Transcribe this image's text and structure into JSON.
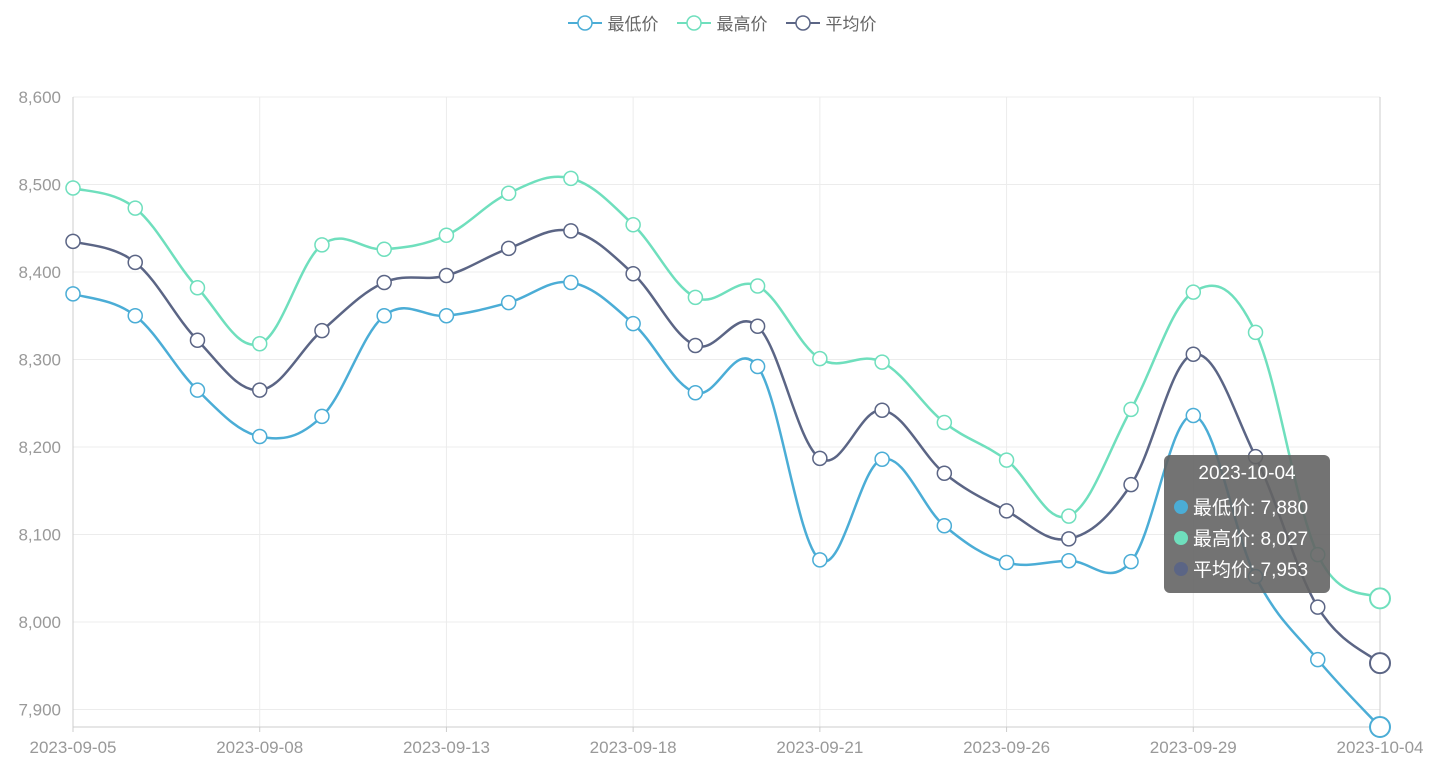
{
  "chart_data": {
    "type": "line",
    "smooth": true,
    "x": [
      "2023-09-05",
      "2023-09-06",
      "2023-09-07",
      "2023-09-08",
      "2023-09-11",
      "2023-09-12",
      "2023-09-13",
      "2023-09-14",
      "2023-09-15",
      "2023-09-18",
      "2023-09-19",
      "2023-09-20",
      "2023-09-21",
      "2023-09-22",
      "2023-09-25",
      "2023-09-26",
      "2023-09-27",
      "2023-09-28",
      "2023-09-29",
      "2023-10-02",
      "2023-10-03",
      "2023-10-04"
    ],
    "x_tick_labels": [
      "2023-09-05",
      "2023-09-08",
      "2023-09-13",
      "2023-09-18",
      "2023-09-21",
      "2023-09-26",
      "2023-09-29",
      "2023-10-04"
    ],
    "series": [
      {
        "name": "最低价",
        "color": "#4badd6",
        "values": [
          8375,
          8350,
          8265,
          8212,
          8235,
          8350,
          8350,
          8365,
          8388,
          8341,
          8262,
          8292,
          8071,
          8186,
          8110,
          8068,
          8070,
          8069,
          8236,
          8052,
          7957,
          7880
        ]
      },
      {
        "name": "最高价",
        "color": "#6fdfbd",
        "values": [
          8496,
          8473,
          8382,
          8318,
          8431,
          8426,
          8442,
          8490,
          8507,
          8454,
          8371,
          8384,
          8301,
          8297,
          8228,
          8185,
          8121,
          8243,
          8377,
          8331,
          8077,
          8027
        ]
      },
      {
        "name": "平均价",
        "color": "#5b6585",
        "values": [
          8435,
          8411,
          8322,
          8265,
          8333,
          8388,
          8396,
          8427,
          8447,
          8398,
          8316,
          8338,
          8187,
          8242,
          8170,
          8127,
          8095,
          8157,
          8306,
          8189,
          8017,
          7953
        ]
      }
    ],
    "yticks": [
      7900,
      8000,
      8100,
      8200,
      8300,
      8400,
      8500,
      8600
    ],
    "ylim": [
      7880,
      8600
    ],
    "grid": true,
    "legend_position": "top-center"
  },
  "legend": [
    {
      "label": "最低价",
      "color": "#4badd6"
    },
    {
      "label": "最高价",
      "color": "#6fdfbd"
    },
    {
      "label": "平均价",
      "color": "#5b6585"
    }
  ],
  "tooltip": {
    "title": "2023-10-04",
    "rows": [
      {
        "text": "最低价: 7,880",
        "color": "#4badd6"
      },
      {
        "text": "最高价: 8,027",
        "color": "#6fdfbd"
      },
      {
        "text": "平均价: 7,953",
        "color": "#5b6585"
      }
    ]
  }
}
